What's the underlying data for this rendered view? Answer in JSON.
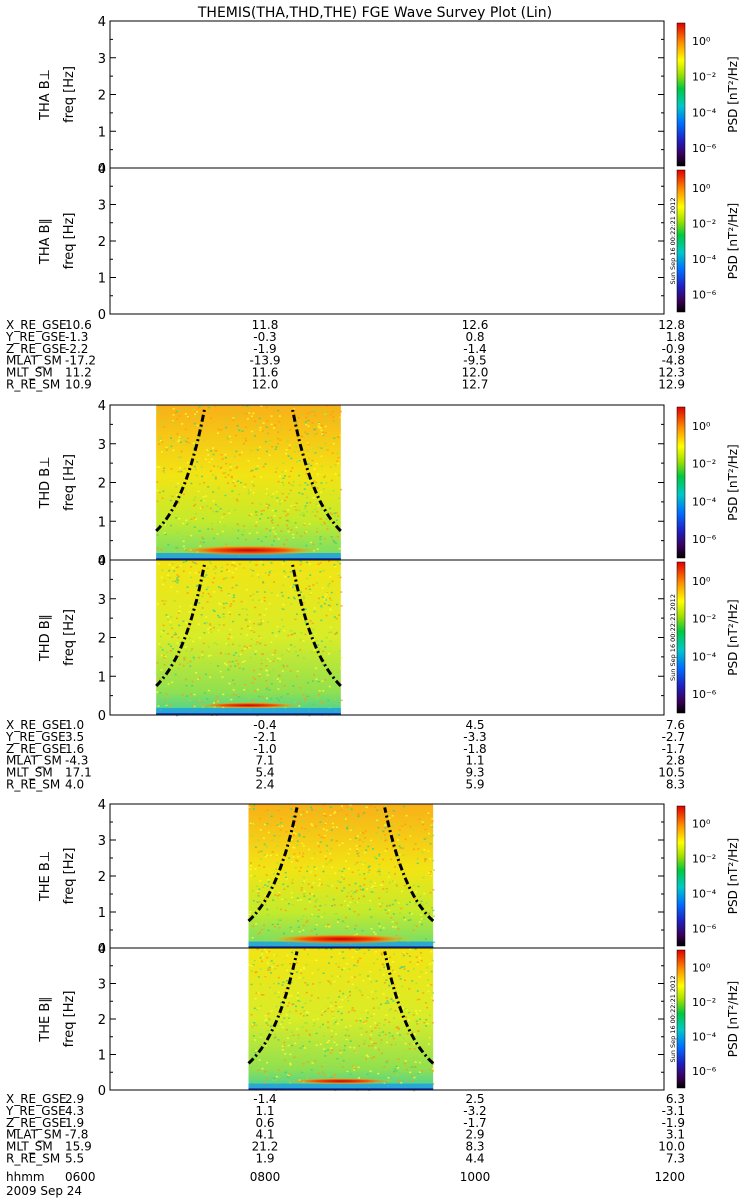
{
  "title": "THEMIS(THA,THD,THE) FGE Wave Survey Plot (Lin)",
  "ylabel": "freq [Hz]",
  "yticks": [
    "0",
    "1",
    "2",
    "3",
    "4"
  ],
  "colorbar": {
    "label": "PSD [nT²/Hz]",
    "ticks": [
      "10⁰",
      "10⁻²",
      "10⁻⁴",
      "10⁻⁶"
    ],
    "stamp": "Sun Sep 16 00:22:21 2012"
  },
  "ephem_labels": [
    "X_RE_GSE",
    "Y_RE_GSE",
    "Z_RE_GSE",
    "MLAT_SM",
    "MLT_SM",
    "R_RE_SM"
  ],
  "time_label": "hhmm",
  "date_label": "2009 Sep 24",
  "time_ticks": [
    "0600",
    "0800",
    "1000",
    "1200"
  ],
  "chart_data": [
    {
      "type": "heatmap",
      "probe": "THA",
      "panels": [
        {
          "label": "THA B⊥",
          "ylim": [
            0,
            4
          ],
          "data_start": null,
          "data_end": null
        },
        {
          "label": "THA B∥",
          "ylim": [
            0,
            4
          ],
          "data_start": null,
          "data_end": null
        }
      ],
      "ephemeris": {
        "X_RE_GSE": [
          "10.6",
          "11.8",
          "12.6",
          "12.8"
        ],
        "Y_RE_GSE": [
          "-1.3",
          "-0.3",
          "0.8",
          "1.8"
        ],
        "Z_RE_GSE": [
          "-2.2",
          "-1.9",
          "-1.4",
          "-0.9"
        ],
        "MLAT_SM": [
          "-17.2",
          "-13.9",
          "-9.5",
          "-4.8"
        ],
        "MLT_SM": [
          "11.2",
          "11.6",
          "12.0",
          "12.3"
        ],
        "R_RE_SM": [
          "10.9",
          "12.0",
          "12.7",
          "12.9"
        ]
      }
    },
    {
      "type": "heatmap",
      "probe": "THD",
      "panels": [
        {
          "label": "THD B⊥",
          "ylim": [
            0,
            4
          ],
          "data_start": "06:30",
          "data_end": "08:30",
          "strong_band_hz": 0.25
        },
        {
          "label": "THD B∥",
          "ylim": [
            0,
            4
          ],
          "data_start": "06:30",
          "data_end": "08:30",
          "strong_band_hz": 0.25
        }
      ],
      "ephemeris": {
        "X_RE_GSE": [
          "1.0",
          "-0.4",
          "4.5",
          "7.6"
        ],
        "Y_RE_GSE": [
          "3.5",
          "-2.1",
          "-3.3",
          "-2.7"
        ],
        "Z_RE_GSE": [
          "1.6",
          "-1.0",
          "-1.8",
          "-1.7"
        ],
        "MLAT_SM": [
          "-4.3",
          "7.1",
          "1.1",
          "2.8"
        ],
        "MLT_SM": [
          "17.1",
          "5.4",
          "9.3",
          "10.5"
        ],
        "R_RE_SM": [
          "4.0",
          "2.4",
          "5.9",
          "8.3"
        ]
      }
    },
    {
      "type": "heatmap",
      "probe": "THE",
      "panels": [
        {
          "label": "THE B⊥",
          "ylim": [
            0,
            4
          ],
          "data_start": "07:30",
          "data_end": "09:30",
          "strong_band_hz": 0.25
        },
        {
          "label": "THE B∥",
          "ylim": [
            0,
            4
          ],
          "data_start": "07:30",
          "data_end": "09:30",
          "strong_band_hz": 0.25
        }
      ],
      "ephemeris": {
        "X_RE_GSE": [
          "2.9",
          "-1.4",
          "2.5",
          "6.3"
        ],
        "Y_RE_GSE": [
          "4.3",
          "1.1",
          "-3.2",
          "-3.1"
        ],
        "Z_RE_GSE": [
          "1.9",
          "0.6",
          "-1.7",
          "-1.9"
        ],
        "MLAT_SM": [
          "-7.8",
          "4.1",
          "2.9",
          "3.1"
        ],
        "MLT_SM": [
          "15.9",
          "21.2",
          "8.3",
          "10.0"
        ],
        "R_RE_SM": [
          "5.5",
          "1.9",
          "4.4",
          "7.3"
        ]
      }
    }
  ]
}
